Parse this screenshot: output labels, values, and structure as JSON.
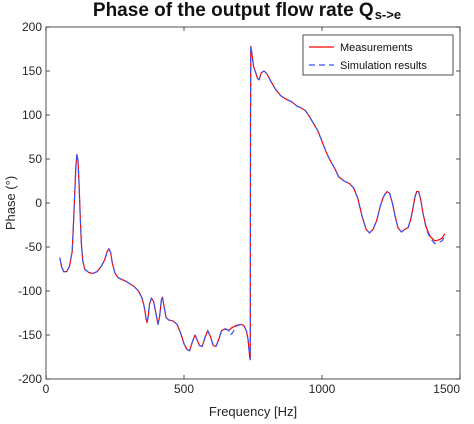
{
  "chart_data": {
    "type": "line",
    "title": "Phase of the output flow rate Q",
    "title_subscript": "s->e",
    "xlabel": "Frequency [Hz]",
    "ylabel": "Phase (°)",
    "xlim": [
      0,
      1500
    ],
    "ylim": [
      -200,
      200
    ],
    "x_ticks": [
      0,
      500,
      1000,
      1500
    ],
    "y_ticks": [
      -200,
      -150,
      -100,
      -50,
      0,
      50,
      100,
      150,
      200
    ],
    "grid": false,
    "legend_position": "top-right",
    "series": [
      {
        "name": "Measurements",
        "color": "#ff0000",
        "dash": "solid",
        "points": [
          [
            50,
            -62
          ],
          [
            56,
            -72
          ],
          [
            64,
            -78
          ],
          [
            75,
            -78
          ],
          [
            85,
            -72
          ],
          [
            95,
            -55
          ],
          [
            100,
            -20
          ],
          [
            104,
            10
          ],
          [
            108,
            40
          ],
          [
            112,
            55
          ],
          [
            116,
            48
          ],
          [
            120,
            20
          ],
          [
            124,
            -15
          ],
          [
            128,
            -45
          ],
          [
            133,
            -65
          ],
          [
            140,
            -75
          ],
          [
            155,
            -79
          ],
          [
            170,
            -80
          ],
          [
            185,
            -78
          ],
          [
            200,
            -72
          ],
          [
            212,
            -65
          ],
          [
            222,
            -55
          ],
          [
            228,
            -52
          ],
          [
            234,
            -56
          ],
          [
            240,
            -68
          ],
          [
            250,
            -80
          ],
          [
            262,
            -85
          ],
          [
            275,
            -87
          ],
          [
            290,
            -89
          ],
          [
            305,
            -92
          ],
          [
            320,
            -95
          ],
          [
            335,
            -100
          ],
          [
            348,
            -108
          ],
          [
            356,
            -118
          ],
          [
            362,
            -130
          ],
          [
            366,
            -136
          ],
          [
            370,
            -130
          ],
          [
            375,
            -115
          ],
          [
            382,
            -108
          ],
          [
            390,
            -112
          ],
          [
            398,
            -125
          ],
          [
            406,
            -138
          ],
          [
            412,
            -128
          ],
          [
            418,
            -110
          ],
          [
            422,
            -107
          ],
          [
            428,
            -118
          ],
          [
            435,
            -130
          ],
          [
            445,
            -133
          ],
          [
            460,
            -134
          ],
          [
            475,
            -138
          ],
          [
            488,
            -148
          ],
          [
            500,
            -160
          ],
          [
            510,
            -166
          ],
          [
            520,
            -168
          ],
          [
            530,
            -158
          ],
          [
            540,
            -150
          ],
          [
            548,
            -156
          ],
          [
            556,
            -162
          ],
          [
            566,
            -163
          ],
          [
            576,
            -153
          ],
          [
            586,
            -145
          ],
          [
            596,
            -152
          ],
          [
            606,
            -162
          ],
          [
            616,
            -163
          ],
          [
            626,
            -155
          ],
          [
            636,
            -145
          ],
          [
            650,
            -143
          ],
          [
            662,
            -145
          ],
          [
            672,
            -142
          ],
          [
            690,
            -139
          ],
          [
            705,
            -138
          ],
          [
            716,
            -139
          ],
          [
            726,
            -145
          ],
          [
            732,
            -155
          ],
          [
            738,
            -175
          ],
          [
            740,
            -178
          ],
          [
            741,
            100
          ],
          [
            742,
            178
          ],
          [
            746,
            170
          ],
          [
            752,
            155
          ],
          [
            760,
            148
          ],
          [
            766,
            142
          ],
          [
            772,
            140
          ],
          [
            780,
            148
          ],
          [
            790,
            150
          ],
          [
            800,
            147
          ],
          [
            815,
            138
          ],
          [
            830,
            130
          ],
          [
            850,
            122
          ],
          [
            870,
            118
          ],
          [
            890,
            115
          ],
          [
            910,
            110
          ],
          [
            925,
            108
          ],
          [
            940,
            105
          ],
          [
            955,
            98
          ],
          [
            970,
            90
          ],
          [
            985,
            82
          ],
          [
            1000,
            70
          ],
          [
            1015,
            58
          ],
          [
            1030,
            48
          ],
          [
            1045,
            40
          ],
          [
            1060,
            30
          ],
          [
            1080,
            25
          ],
          [
            1100,
            22
          ],
          [
            1115,
            17
          ],
          [
            1130,
            5
          ],
          [
            1145,
            -15
          ],
          [
            1160,
            -30
          ],
          [
            1172,
            -34
          ],
          [
            1185,
            -30
          ],
          [
            1198,
            -20
          ],
          [
            1210,
            -5
          ],
          [
            1220,
            5
          ],
          [
            1228,
            10
          ],
          [
            1236,
            13
          ],
          [
            1245,
            11
          ],
          [
            1255,
            0
          ],
          [
            1265,
            -15
          ],
          [
            1275,
            -28
          ],
          [
            1288,
            -33
          ],
          [
            1300,
            -30
          ],
          [
            1312,
            -28
          ],
          [
            1322,
            -18
          ],
          [
            1330,
            -5
          ],
          [
            1337,
            7
          ],
          [
            1343,
            13
          ],
          [
            1350,
            13
          ],
          [
            1357,
            5
          ],
          [
            1366,
            -12
          ],
          [
            1378,
            -28
          ],
          [
            1392,
            -38
          ],
          [
            1408,
            -43
          ],
          [
            1423,
            -42
          ],
          [
            1435,
            -40
          ],
          [
            1445,
            -35
          ]
        ]
      },
      {
        "name": "Simulation results",
        "color": "#3355ff",
        "dash": "dashed",
        "points": [
          [
            50,
            -62
          ],
          [
            56,
            -72
          ],
          [
            64,
            -78
          ],
          [
            75,
            -78
          ],
          [
            85,
            -72
          ],
          [
            95,
            -55
          ],
          [
            100,
            -20
          ],
          [
            104,
            10
          ],
          [
            108,
            40
          ],
          [
            112,
            55
          ],
          [
            116,
            48
          ],
          [
            120,
            20
          ],
          [
            124,
            -15
          ],
          [
            128,
            -45
          ],
          [
            133,
            -65
          ],
          [
            140,
            -75
          ],
          [
            155,
            -79
          ],
          [
            170,
            -80
          ],
          [
            185,
            -78
          ],
          [
            200,
            -72
          ],
          [
            212,
            -65
          ],
          [
            222,
            -55
          ],
          [
            228,
            -52
          ],
          [
            234,
            -56
          ],
          [
            240,
            -68
          ],
          [
            250,
            -80
          ],
          [
            262,
            -85
          ],
          [
            275,
            -87
          ],
          [
            290,
            -89
          ],
          [
            305,
            -92
          ],
          [
            320,
            -95
          ],
          [
            335,
            -100
          ],
          [
            348,
            -108
          ],
          [
            356,
            -118
          ],
          [
            362,
            -130
          ],
          [
            366,
            -136
          ],
          [
            370,
            -130
          ],
          [
            375,
            -115
          ],
          [
            382,
            -108
          ],
          [
            390,
            -112
          ],
          [
            398,
            -125
          ],
          [
            406,
            -138
          ],
          [
            412,
            -128
          ],
          [
            418,
            -110
          ],
          [
            422,
            -107
          ],
          [
            428,
            -118
          ],
          [
            435,
            -130
          ],
          [
            445,
            -133
          ],
          [
            460,
            -134
          ],
          [
            475,
            -138
          ],
          [
            488,
            -148
          ],
          [
            500,
            -160
          ],
          [
            510,
            -166
          ],
          [
            520,
            -168
          ],
          [
            530,
            -158
          ],
          [
            540,
            -150
          ],
          [
            548,
            -156
          ],
          [
            556,
            -162
          ],
          [
            566,
            -163
          ],
          [
            576,
            -153
          ],
          [
            586,
            -145
          ],
          [
            596,
            -152
          ],
          [
            606,
            -162
          ],
          [
            616,
            -163
          ],
          [
            626,
            -155
          ],
          [
            636,
            -145
          ],
          [
            650,
            -143
          ],
          [
            662,
            -145
          ],
          [
            668,
            -150
          ],
          [
            675,
            -148
          ],
          [
            690,
            -140
          ],
          [
            705,
            -138
          ],
          [
            716,
            -139
          ],
          [
            726,
            -145
          ],
          [
            732,
            -155
          ],
          [
            738,
            -175
          ],
          [
            740,
            -178
          ],
          [
            741,
            100
          ],
          [
            742,
            178
          ],
          [
            746,
            170
          ],
          [
            752,
            155
          ],
          [
            760,
            148
          ],
          [
            766,
            142
          ],
          [
            772,
            140
          ],
          [
            780,
            148
          ],
          [
            790,
            150
          ],
          [
            800,
            147
          ],
          [
            815,
            138
          ],
          [
            830,
            130
          ],
          [
            850,
            122
          ],
          [
            870,
            118
          ],
          [
            890,
            115
          ],
          [
            910,
            110
          ],
          [
            925,
            108
          ],
          [
            940,
            105
          ],
          [
            955,
            98
          ],
          [
            970,
            90
          ],
          [
            985,
            82
          ],
          [
            1000,
            70
          ],
          [
            1015,
            58
          ],
          [
            1030,
            48
          ],
          [
            1045,
            40
          ],
          [
            1060,
            30
          ],
          [
            1080,
            25
          ],
          [
            1100,
            22
          ],
          [
            1115,
            17
          ],
          [
            1130,
            5
          ],
          [
            1145,
            -15
          ],
          [
            1160,
            -30
          ],
          [
            1172,
            -34
          ],
          [
            1185,
            -30
          ],
          [
            1198,
            -20
          ],
          [
            1210,
            -5
          ],
          [
            1220,
            5
          ],
          [
            1228,
            10
          ],
          [
            1236,
            13
          ],
          [
            1245,
            11
          ],
          [
            1255,
            0
          ],
          [
            1265,
            -15
          ],
          [
            1275,
            -28
          ],
          [
            1288,
            -33
          ],
          [
            1300,
            -30
          ],
          [
            1312,
            -28
          ],
          [
            1322,
            -18
          ],
          [
            1330,
            -5
          ],
          [
            1337,
            7
          ],
          [
            1343,
            13
          ],
          [
            1350,
            13
          ],
          [
            1357,
            5
          ],
          [
            1366,
            -12
          ],
          [
            1378,
            -30
          ],
          [
            1392,
            -40
          ],
          [
            1408,
            -46
          ],
          [
            1423,
            -45
          ],
          [
            1435,
            -43
          ],
          [
            1445,
            -38
          ]
        ]
      }
    ]
  }
}
